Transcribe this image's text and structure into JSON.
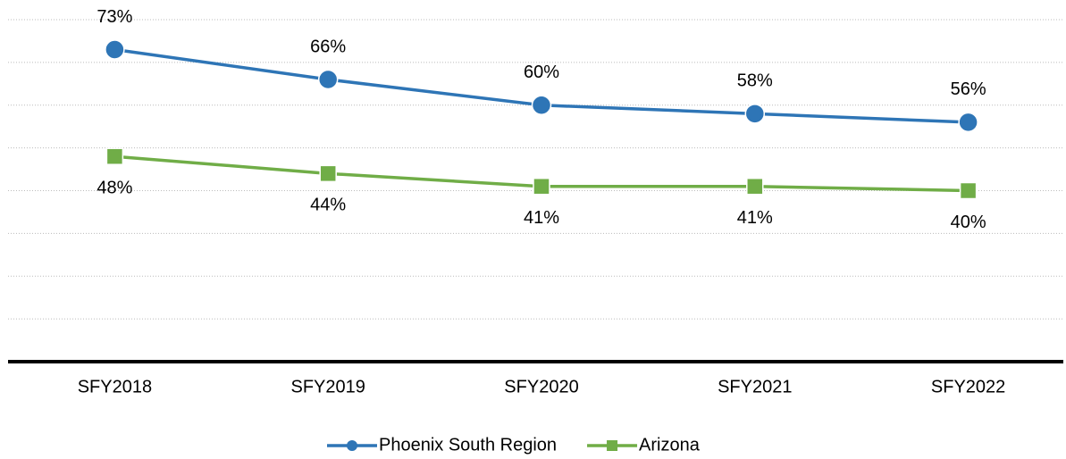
{
  "chart_data": {
    "type": "line",
    "categories": [
      "SFY2018",
      "SFY2019",
      "SFY2020",
      "SFY2021",
      "SFY2022"
    ],
    "series": [
      {
        "name": "Phoenix South Region",
        "color": "#2e75b6",
        "marker": "circle",
        "label_position": "above",
        "values": [
          73,
          66,
          60,
          58,
          56
        ],
        "value_labels": [
          "73%",
          "66%",
          "60%",
          "58%",
          "56%"
        ]
      },
      {
        "name": "Arizona",
        "color": "#70ad47",
        "marker": "square",
        "label_position": "below",
        "values": [
          48,
          44,
          41,
          41,
          40
        ],
        "value_labels": [
          "48%",
          "44%",
          "41%",
          "41%",
          "40%"
        ]
      }
    ],
    "ylim": [
      0,
      80
    ],
    "yticks": [
      0,
      10,
      20,
      30,
      40,
      50,
      60,
      70,
      80
    ],
    "grid": true,
    "legend": "bottom"
  }
}
